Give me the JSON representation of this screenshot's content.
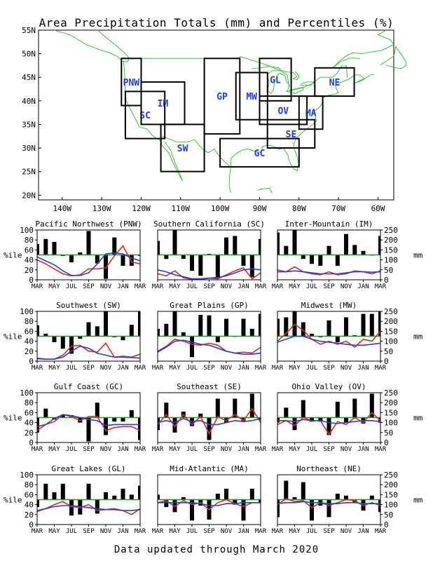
{
  "title": "Area Precipitation Totals (mm) and Percentiles (%)",
  "footer": "Data updated through March 2020",
  "colors": {
    "bar": "#000000",
    "red_line": "#e8261e",
    "blue_line": "#1f3fe0",
    "ref_line": "#1a9e1a",
    "map_lines": "#22c422",
    "region_box": "#000000",
    "region_label": "#1a3cff"
  },
  "map": {
    "lat_ticks": [
      "55N",
      "50N",
      "45N",
      "40N",
      "35N",
      "30N",
      "25N",
      "20N"
    ],
    "lon_ticks": [
      "140W",
      "130W",
      "120W",
      "110W",
      "100W",
      "90W",
      "80W",
      "70W",
      "60W"
    ],
    "regions": [
      {
        "code": "PNW",
        "w": -125,
        "e": -120,
        "s": 39,
        "n": 49
      },
      {
        "code": "SC",
        "w": -124,
        "e": -114,
        "s": 32,
        "n": 42
      },
      {
        "code": "IM",
        "w": -120,
        "e": -109,
        "s": 35,
        "n": 44
      },
      {
        "code": "SW",
        "w": -115,
        "e": -104,
        "s": 25,
        "n": 35
      },
      {
        "code": "GP",
        "w": -104,
        "e": -95,
        "s": 33,
        "n": 49
      },
      {
        "code": "MW",
        "w": -96,
        "e": -88,
        "s": 36,
        "n": 46
      },
      {
        "code": "GL",
        "w": -90,
        "e": -82,
        "s": 40,
        "n": 49
      },
      {
        "code": "OV",
        "w": -90,
        "e": -78,
        "s": 35,
        "n": 41
      },
      {
        "code": "SE",
        "w": -88,
        "e": -76,
        "s": 30,
        "n": 36
      },
      {
        "code": "GC",
        "w": -100,
        "e": -80,
        "s": 26,
        "n": 32
      },
      {
        "code": "MA",
        "w": -80,
        "e": -74,
        "s": 34,
        "n": 41
      },
      {
        "code": "NE",
        "w": -76,
        "e": -66,
        "s": 41,
        "n": 47
      }
    ]
  },
  "axes": {
    "left_label": "%ile",
    "right_label": "mm",
    "pct_ticks": [
      "0",
      "20",
      "40",
      "60",
      "80",
      "100"
    ],
    "mm_ticks": [
      "0",
      "50",
      "100",
      "150",
      "200",
      "250"
    ],
    "month_ticks": [
      "MAR",
      "MAY",
      "JUL",
      "SEP",
      "NOV",
      "JAN",
      "MAR"
    ]
  },
  "chart_data": [
    {
      "type": "line",
      "title": "Pacific Northwest (PNW)",
      "ylim_pct": [
        0,
        100
      ],
      "ylim_mm": [
        0,
        250
      ],
      "reference_pct": 50,
      "bars_pct": [
        72,
        82,
        76,
        48,
        35,
        55,
        98,
        33,
        2,
        85,
        28,
        28,
        48
      ],
      "series": [
        {
          "values_mm": [
            100,
            80,
            55,
            30,
            20,
            25,
            55,
            55,
            60,
            120,
            170,
            90,
            80
          ]
        },
        {
          "values_mm": [
            115,
            95,
            75,
            45,
            22,
            22,
            35,
            80,
            130,
            135,
            130,
            110,
            95
          ]
        }
      ]
    },
    {
      "type": "line",
      "title": "Southern California (SC)",
      "ylim_pct": [
        0,
        100
      ],
      "ylim_mm": [
        0,
        250
      ],
      "reference_pct": 50,
      "bars_pct": [
        78,
        42,
        100,
        42,
        18,
        8,
        52,
        2,
        85,
        88,
        28,
        5,
        82
      ],
      "series": [
        {
          "values_mm": [
            30,
            20,
            45,
            10,
            2,
            2,
            8,
            5,
            25,
            45,
            60,
            5,
            35
          ]
        },
        {
          "values_mm": [
            50,
            40,
            25,
            15,
            5,
            5,
            8,
            12,
            20,
            35,
            50,
            55,
            50
          ]
        }
      ]
    },
    {
      "type": "line",
      "title": "Inter-Mountain (IM)",
      "ylim_pct": [
        0,
        100
      ],
      "ylim_mm": [
        0,
        250
      ],
      "reference_pct": 50,
      "bars_pct": [
        95,
        68,
        100,
        42,
        32,
        28,
        68,
        28,
        92,
        70,
        58,
        50,
        88
      ],
      "series": [
        {
          "values_mm": [
            50,
            40,
            65,
            40,
            30,
            25,
            40,
            25,
            30,
            45,
            40,
            30,
            45
          ]
        },
        {
          "values_mm": [
            40,
            40,
            45,
            40,
            35,
            30,
            30,
            30,
            35,
            40,
            40,
            38,
            40
          ]
        }
      ]
    },
    {
      "type": "line",
      "title": "Southwest (SW)",
      "ylim_pct": [
        0,
        100
      ],
      "ylim_mm": [
        0,
        250
      ],
      "reference_pct": 50,
      "bars_pct": [
        72,
        55,
        38,
        25,
        15,
        45,
        78,
        70,
        100,
        48,
        42,
        73,
        100
      ],
      "series": [
        {
          "values_mm": [
            15,
            10,
            10,
            30,
            75,
            80,
            50,
            45,
            90,
            20,
            25,
            20,
            35
          ]
        },
        {
          "values_mm": [
            12,
            10,
            10,
            20,
            50,
            75,
            65,
            40,
            30,
            20,
            20,
            18,
            15
          ]
        }
      ]
    },
    {
      "type": "line",
      "title": "Great Plains (GP)",
      "ylim_pct": [
        0,
        100
      ],
      "ylim_mm": [
        0,
        250
      ],
      "reference_pct": 50,
      "bars_pct": [
        65,
        75,
        100,
        58,
        8,
        93,
        92,
        38,
        85,
        50,
        85,
        65,
        95
      ],
      "series": [
        {
          "values_mm": [
            50,
            75,
            110,
            100,
            85,
            80,
            90,
            80,
            50,
            40,
            45,
            40,
            70
          ]
        },
        {
          "values_mm": [
            45,
            70,
            100,
            105,
            95,
            85,
            80,
            65,
            50,
            40,
            35,
            35,
            40
          ]
        }
      ]
    },
    {
      "type": "line",
      "title": "Midwest (MW)",
      "ylim_pct": [
        0,
        100
      ],
      "ylim_mm": [
        0,
        250
      ],
      "reference_pct": 50,
      "bars_pct": [
        85,
        88,
        100,
        78,
        55,
        48,
        82,
        38,
        88,
        52,
        95,
        95,
        100
      ],
      "series": [
        {
          "values_mm": [
            100,
            140,
            185,
            155,
            110,
            85,
            100,
            85,
            100,
            70,
            110,
            100,
            150
          ]
        },
        {
          "values_mm": [
            95,
            110,
            125,
            125,
            110,
            100,
            95,
            90,
            85,
            80,
            80,
            85,
            90
          ]
        }
      ]
    },
    {
      "type": "line",
      "title": "Gulf Coast (GC)",
      "ylim_pct": [
        0,
        100
      ],
      "ylim_mm": [
        0,
        250
      ],
      "reference_pct": 50,
      "bars_pct": [
        20,
        68,
        46,
        55,
        55,
        40,
        2,
        80,
        15,
        42,
        42,
        65,
        5
      ],
      "series": [
        {
          "values_mm": [
            60,
            90,
            105,
            140,
            130,
            110,
            130,
            130,
            60,
            75,
            80,
            80,
            60
          ]
        },
        {
          "values_mm": [
            80,
            90,
            120,
            140,
            135,
            125,
            115,
            110,
            85,
            90,
            90,
            90,
            90
          ]
        }
      ]
    },
    {
      "type": "line",
      "title": "Southeast (SE)",
      "ylim_pct": [
        0,
        100
      ],
      "ylim_mm": [
        0,
        250
      ],
      "reference_pct": 50,
      "bars_pct": [
        25,
        80,
        20,
        62,
        33,
        58,
        5,
        88,
        40,
        88,
        42,
        98,
        45
      ],
      "series": [
        {
          "values_mm": [
            90,
            140,
            80,
            140,
            90,
            130,
            45,
            130,
            110,
            140,
            110,
            170,
            100
          ]
        },
        {
          "values_mm": [
            100,
            110,
            100,
            120,
            105,
            110,
            90,
            90,
            100,
            110,
            105,
            110,
            120
          ]
        }
      ]
    },
    {
      "type": "line",
      "title": "Ohio Valley (OV)",
      "ylim_pct": [
        0,
        100
      ],
      "ylim_mm": [
        0,
        250
      ],
      "reference_pct": 50,
      "bars_pct": [
        40,
        70,
        25,
        85,
        42,
        42,
        15,
        82,
        40,
        88,
        38,
        98,
        40
      ],
      "series": [
        {
          "values_mm": [
            90,
            110,
            85,
            125,
            110,
            110,
            40,
            105,
            90,
            125,
            100,
            150,
            110
          ]
        },
        {
          "values_mm": [
            110,
            110,
            105,
            115,
            110,
            110,
            100,
            95,
            100,
            105,
            110,
            110,
            105
          ]
        }
      ]
    },
    {
      "type": "line",
      "title": "Great Lakes (GL)",
      "ylim_pct": [
        0,
        100
      ],
      "ylim_mm": [
        0,
        250
      ],
      "reference_pct": 50,
      "bars_pct": [
        35,
        82,
        65,
        82,
        18,
        20,
        82,
        22,
        65,
        58,
        72,
        60,
        78
      ],
      "series": [
        {
          "values_mm": [
            65,
            80,
            100,
            115,
            90,
            85,
            100,
            70,
            75,
            80,
            70,
            50,
            80
          ]
        },
        {
          "values_mm": [
            70,
            80,
            90,
            95,
            95,
            90,
            85,
            80,
            75,
            75,
            70,
            70,
            75
          ]
        }
      ]
    },
    {
      "type": "line",
      "title": "Mid-Atlantic (MA)",
      "ylim_pct": [
        0,
        100
      ],
      "ylim_mm": [
        0,
        250
      ],
      "reference_pct": 50,
      "bars_pct": [
        60,
        35,
        25,
        55,
        8,
        38,
        10,
        62,
        72,
        40,
        8,
        72,
        45
      ],
      "series": [
        {
          "values_mm": [
            110,
            120,
            90,
            120,
            100,
            110,
            75,
            110,
            125,
            105,
            90,
            110,
            110
          ]
        },
        {
          "values_mm": [
            110,
            110,
            110,
            110,
            110,
            105,
            95,
            95,
            105,
            105,
            110,
            110,
            110
          ]
        }
      ]
    },
    {
      "type": "line",
      "title": "Northeast (NE)",
      "ylim_pct": [
        0,
        100
      ],
      "ylim_mm": [
        0,
        250
      ],
      "reference_pct": 50,
      "bars_pct": [
        15,
        88,
        55,
        85,
        8,
        38,
        15,
        62,
        58,
        45,
        28,
        58,
        25
      ],
      "series": [
        {
          "values_mm": [
            100,
            130,
            115,
            120,
            85,
            110,
            95,
            110,
            125,
            120,
            95,
            110,
            95
          ]
        },
        {
          "values_mm": [
            105,
            110,
            110,
            115,
            110,
            110,
            105,
            105,
            110,
            110,
            105,
            105,
            105
          ]
        }
      ]
    }
  ]
}
